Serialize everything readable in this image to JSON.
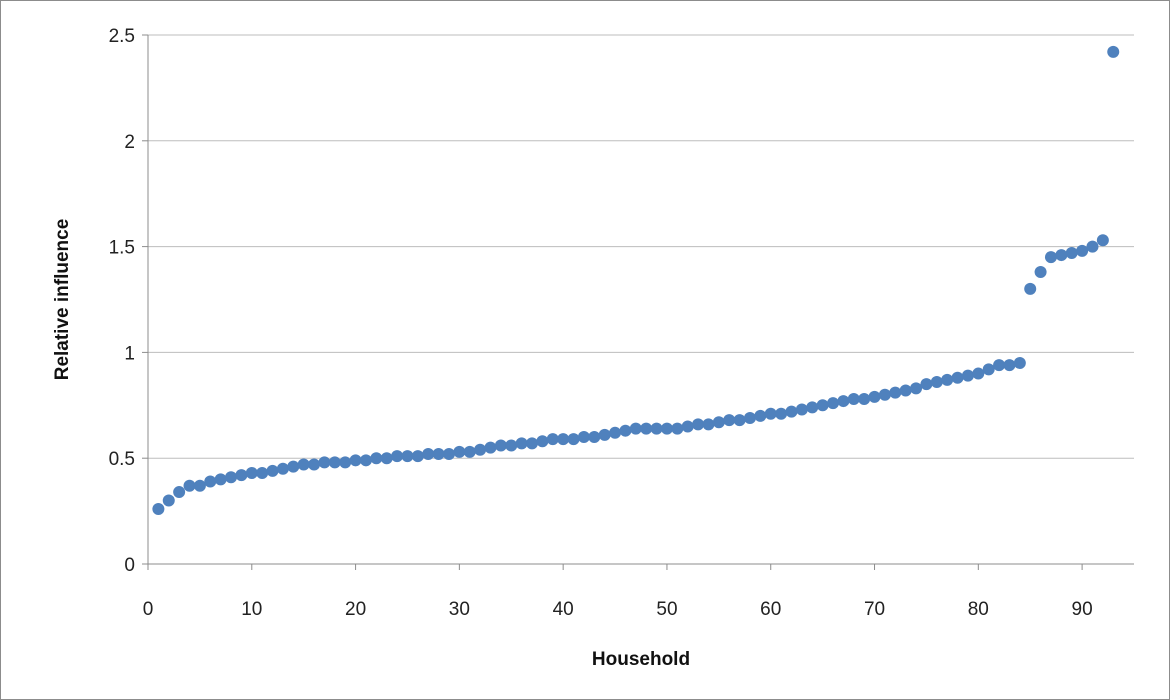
{
  "chart_data": {
    "type": "scatter",
    "xlabel": "Household",
    "ylabel": "Relative influence",
    "xlim": [
      0,
      95
    ],
    "ylim": [
      0,
      2.5
    ],
    "x_ticks": [
      0,
      10,
      20,
      30,
      40,
      50,
      60,
      70,
      80,
      90
    ],
    "y_ticks": [
      0,
      0.5,
      1,
      1.5,
      2,
      2.5
    ],
    "x_tick_labels": [
      "0",
      "10",
      "20",
      "30",
      "40",
      "50",
      "60",
      "70",
      "80",
      "90"
    ],
    "y_tick_labels": [
      "0",
      "0.5",
      "1",
      "1.5",
      "2",
      "2.5"
    ],
    "grid": {
      "horizontal": true,
      "vertical": false
    },
    "legend": "none",
    "marker_color": "#4f81bd",
    "series": [
      {
        "x": [
          1,
          2,
          3,
          4,
          5,
          6,
          7,
          8,
          9,
          10,
          11,
          12,
          13,
          14,
          15,
          16,
          17,
          18,
          19,
          20,
          21,
          22,
          23,
          24,
          25,
          26,
          27,
          28,
          29,
          30,
          31,
          32,
          33,
          34,
          35,
          36,
          37,
          38,
          39,
          40,
          41,
          42,
          43,
          44,
          45,
          46,
          47,
          48,
          49,
          50,
          51,
          52,
          53,
          54,
          55,
          56,
          57,
          58,
          59,
          60,
          61,
          62,
          63,
          64,
          65,
          66,
          67,
          68,
          69,
          70,
          71,
          72,
          73,
          74,
          75,
          76,
          77,
          78,
          79,
          80,
          81,
          82,
          83,
          84,
          85,
          86,
          87,
          88,
          89,
          90,
          91,
          92,
          93
        ],
        "y": [
          0.26,
          0.3,
          0.34,
          0.37,
          0.37,
          0.39,
          0.4,
          0.41,
          0.42,
          0.43,
          0.43,
          0.44,
          0.45,
          0.46,
          0.47,
          0.47,
          0.48,
          0.48,
          0.48,
          0.49,
          0.49,
          0.5,
          0.5,
          0.51,
          0.51,
          0.51,
          0.52,
          0.52,
          0.52,
          0.53,
          0.53,
          0.54,
          0.55,
          0.56,
          0.56,
          0.57,
          0.57,
          0.58,
          0.59,
          0.59,
          0.59,
          0.6,
          0.6,
          0.61,
          0.62,
          0.63,
          0.64,
          0.64,
          0.64,
          0.64,
          0.64,
          0.65,
          0.66,
          0.66,
          0.67,
          0.68,
          0.68,
          0.69,
          0.7,
          0.71,
          0.71,
          0.72,
          0.73,
          0.74,
          0.75,
          0.76,
          0.77,
          0.78,
          0.78,
          0.79,
          0.8,
          0.81,
          0.82,
          0.83,
          0.85,
          0.86,
          0.87,
          0.88,
          0.89,
          0.9,
          0.92,
          0.94,
          0.94,
          0.95,
          1.3,
          1.38,
          1.45,
          1.46,
          1.47,
          1.48,
          1.5,
          1.53,
          2.42
        ]
      }
    ]
  }
}
